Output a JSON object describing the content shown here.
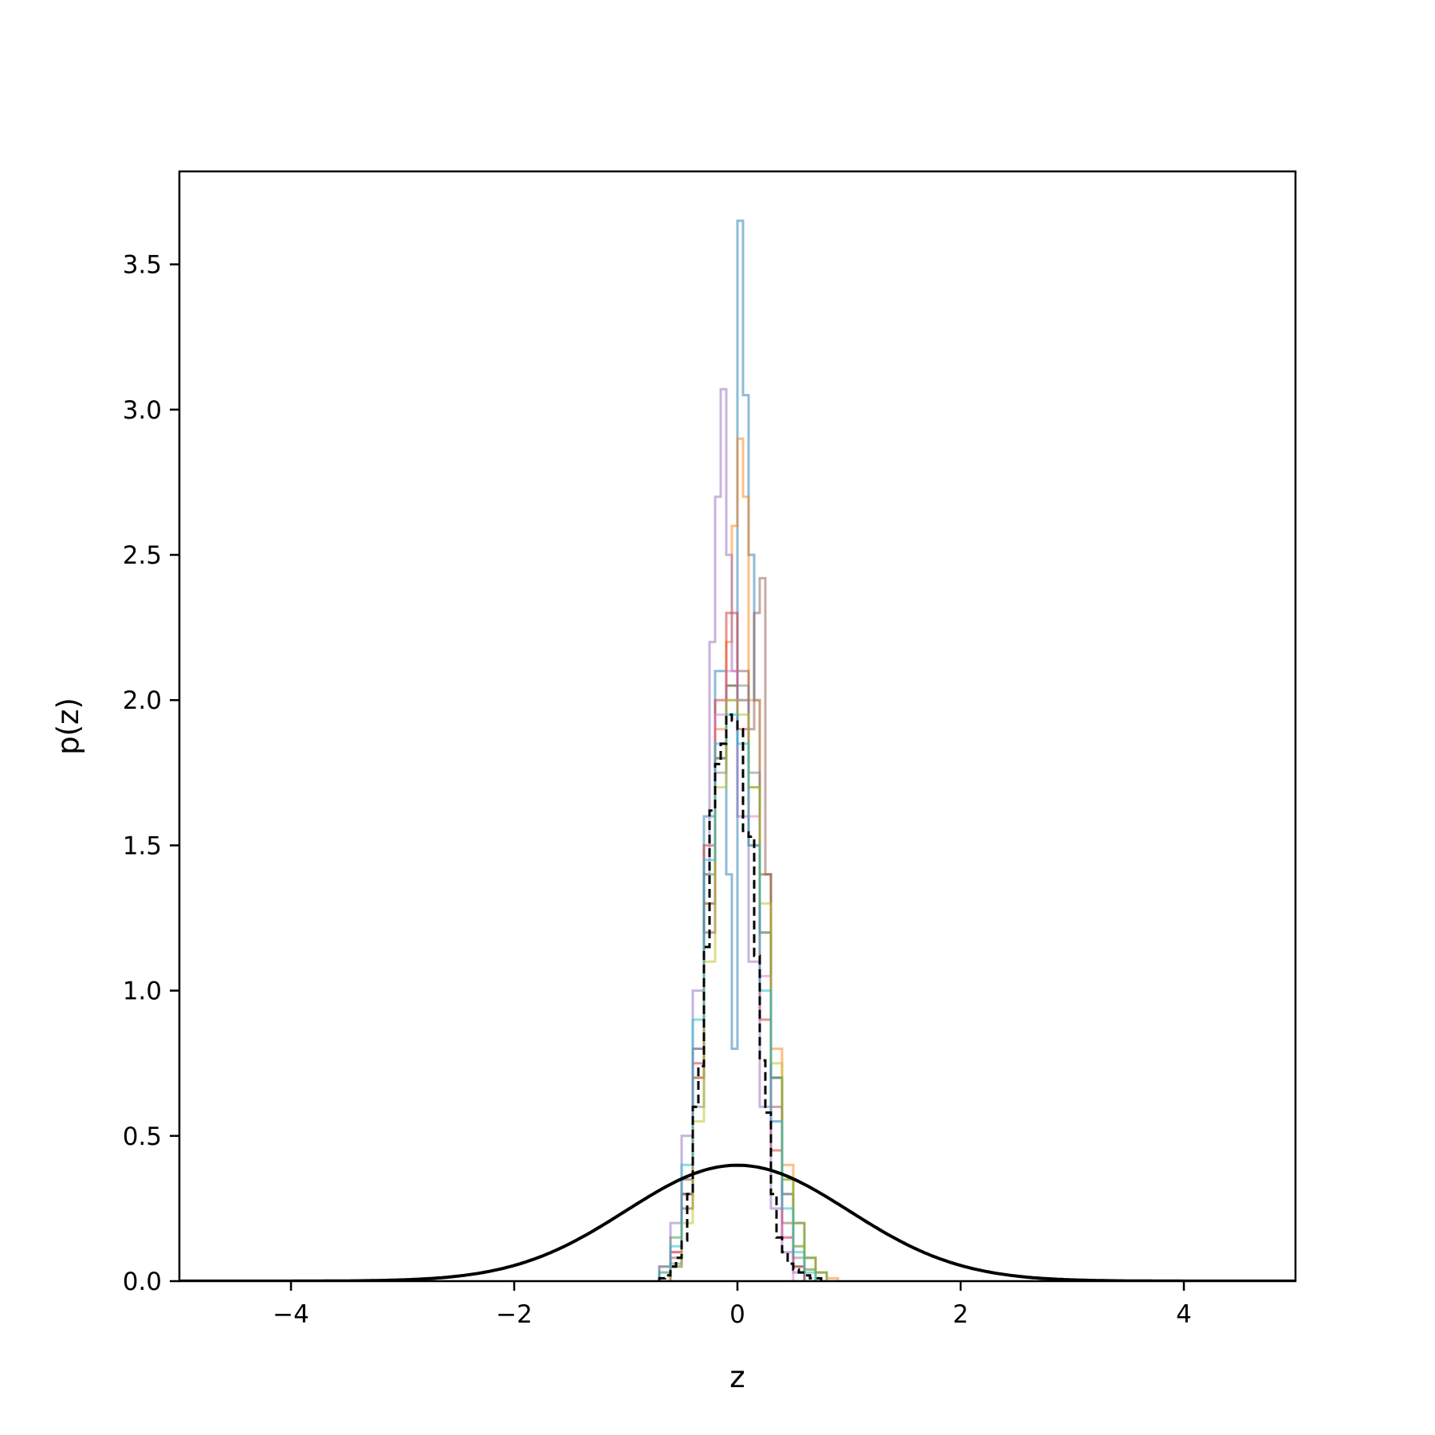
{
  "chart_data": {
    "type": "line",
    "title": "",
    "xlabel": "z",
    "ylabel": "p(z)",
    "xlim": [
      -5,
      5
    ],
    "ylim": [
      0,
      3.82
    ],
    "xticks": [
      -4,
      -2,
      0,
      2,
      4
    ],
    "xtick_labels": [
      "−4",
      "−2",
      "0",
      "2",
      "4"
    ],
    "yticks": [
      0.0,
      0.5,
      1.0,
      1.5,
      2.0,
      2.5,
      3.0,
      3.5
    ],
    "ytick_labels": [
      "0.0",
      "0.5",
      "1.0",
      "1.5",
      "2.0",
      "2.5",
      "3.0",
      "3.5"
    ],
    "grid": false,
    "legend": "none",
    "prior": {
      "style": "solid",
      "color": "#000000",
      "distribution": "standard normal",
      "mean": 0,
      "std": 1,
      "peak": 0.399
    },
    "aggregate_histogram": {
      "style": "dashed-step",
      "color": "#000000",
      "bin_edges": [
        -0.7,
        -0.65,
        -0.6,
        -0.55,
        -0.5,
        -0.45,
        -0.4,
        -0.35,
        -0.3,
        -0.25,
        -0.2,
        -0.15,
        -0.1,
        -0.05,
        0.0,
        0.05,
        0.1,
        0.15,
        0.2,
        0.25,
        0.3,
        0.35,
        0.4,
        0.45,
        0.5,
        0.55,
        0.6,
        0.65,
        0.7,
        0.75
      ],
      "values": [
        0.01,
        0.02,
        0.05,
        0.08,
        0.14,
        0.3,
        0.6,
        0.74,
        1.15,
        1.62,
        1.78,
        1.85,
        1.95,
        1.93,
        1.9,
        1.55,
        1.53,
        1.12,
        0.76,
        0.58,
        0.3,
        0.15,
        0.1,
        0.06,
        0.04,
        0.03,
        0.02,
        0.01,
        0.01
      ]
    },
    "series": [
      {
        "color": "#1f77b4",
        "bin_edges": [
          -0.6,
          -0.5,
          -0.4,
          -0.3,
          -0.2,
          -0.1,
          -0.05,
          0.0,
          0.05,
          0.1,
          0.15,
          0.2,
          0.3,
          0.4,
          0.5,
          0.6,
          0.7
        ],
        "values": [
          0.05,
          0.3,
          0.8,
          1.6,
          2.1,
          1.4,
          0.8,
          3.65,
          3.05,
          2.5,
          2.0,
          1.4,
          0.7,
          0.3,
          0.12,
          0.04
        ]
      },
      {
        "color": "#ff7f0e",
        "bin_edges": [
          -0.7,
          -0.6,
          -0.5,
          -0.4,
          -0.3,
          -0.2,
          -0.1,
          -0.05,
          0.0,
          0.05,
          0.1,
          0.2,
          0.3,
          0.4,
          0.5,
          0.6,
          0.7,
          0.8,
          0.9
        ],
        "values": [
          0.03,
          0.1,
          0.25,
          0.7,
          1.3,
          1.9,
          2.2,
          2.6,
          2.9,
          2.7,
          2.0,
          1.4,
          0.8,
          0.4,
          0.2,
          0.08,
          0.03,
          0.01
        ]
      },
      {
        "color": "#2ca02c",
        "bin_edges": [
          -0.7,
          -0.6,
          -0.5,
          -0.4,
          -0.3,
          -0.2,
          -0.1,
          0.0,
          0.1,
          0.2,
          0.3,
          0.4,
          0.5,
          0.6,
          0.7,
          0.8
        ],
        "values": [
          0.05,
          0.15,
          0.35,
          0.8,
          1.4,
          1.8,
          2.05,
          2.0,
          1.7,
          1.2,
          0.7,
          0.35,
          0.2,
          0.08,
          0.03
        ]
      },
      {
        "color": "#d62728",
        "bin_edges": [
          -0.6,
          -0.5,
          -0.4,
          -0.3,
          -0.2,
          -0.1,
          0.0,
          0.1,
          0.2,
          0.3,
          0.4,
          0.5,
          0.6
        ],
        "values": [
          0.1,
          0.3,
          0.75,
          1.5,
          2.0,
          2.3,
          1.9,
          1.5,
          0.9,
          0.45,
          0.15,
          0.05
        ]
      },
      {
        "color": "#9467bd",
        "bin_edges": [
          -0.7,
          -0.6,
          -0.5,
          -0.4,
          -0.3,
          -0.25,
          -0.2,
          -0.15,
          -0.1,
          -0.05,
          0.0,
          0.1,
          0.2,
          0.3,
          0.4,
          0.5,
          0.6
        ],
        "values": [
          0.05,
          0.2,
          0.5,
          1.0,
          1.4,
          2.2,
          2.7,
          3.07,
          2.5,
          2.1,
          1.6,
          1.1,
          0.6,
          0.25,
          0.1,
          0.03
        ]
      },
      {
        "color": "#8c564b",
        "bin_edges": [
          -0.6,
          -0.5,
          -0.4,
          -0.3,
          -0.2,
          -0.1,
          0.0,
          0.1,
          0.15,
          0.2,
          0.25,
          0.3,
          0.4,
          0.5,
          0.6
        ],
        "values": [
          0.08,
          0.3,
          0.7,
          1.3,
          1.8,
          2.05,
          2.1,
          1.9,
          2.3,
          2.42,
          1.4,
          0.6,
          0.2,
          0.05
        ]
      },
      {
        "color": "#e377c2",
        "bin_edges": [
          -0.6,
          -0.5,
          -0.4,
          -0.3,
          -0.2,
          -0.1,
          0.0,
          0.1,
          0.2,
          0.3,
          0.4,
          0.5
        ],
        "values": [
          0.1,
          0.35,
          0.8,
          1.2,
          1.95,
          2.1,
          2.0,
          1.6,
          1.05,
          0.55,
          0.15
        ]
      },
      {
        "color": "#7f7f7f",
        "bin_edges": [
          -0.6,
          -0.5,
          -0.4,
          -0.3,
          -0.2,
          -0.1,
          0.0,
          0.1,
          0.2,
          0.3,
          0.4,
          0.5,
          0.6
        ],
        "values": [
          0.06,
          0.25,
          0.6,
          1.2,
          1.75,
          2.0,
          2.05,
          1.75,
          1.2,
          0.7,
          0.3,
          0.08
        ]
      },
      {
        "color": "#bcbd22",
        "bin_edges": [
          -0.6,
          -0.5,
          -0.4,
          -0.3,
          -0.2,
          -0.1,
          0.0,
          0.1,
          0.2,
          0.3,
          0.4,
          0.5,
          0.6,
          0.7
        ],
        "values": [
          0.05,
          0.2,
          0.55,
          1.1,
          1.7,
          2.0,
          1.95,
          1.7,
          1.3,
          0.75,
          0.35,
          0.12,
          0.04
        ]
      },
      {
        "color": "#17becf",
        "bin_edges": [
          -0.7,
          -0.6,
          -0.5,
          -0.4,
          -0.3,
          -0.2,
          -0.1,
          0.0,
          0.1,
          0.2,
          0.3,
          0.4,
          0.5,
          0.6,
          0.7
        ],
        "values": [
          0.03,
          0.12,
          0.4,
          0.9,
          1.45,
          1.85,
          1.95,
          1.85,
          1.5,
          1.0,
          0.55,
          0.25,
          0.1,
          0.03
        ]
      }
    ]
  }
}
